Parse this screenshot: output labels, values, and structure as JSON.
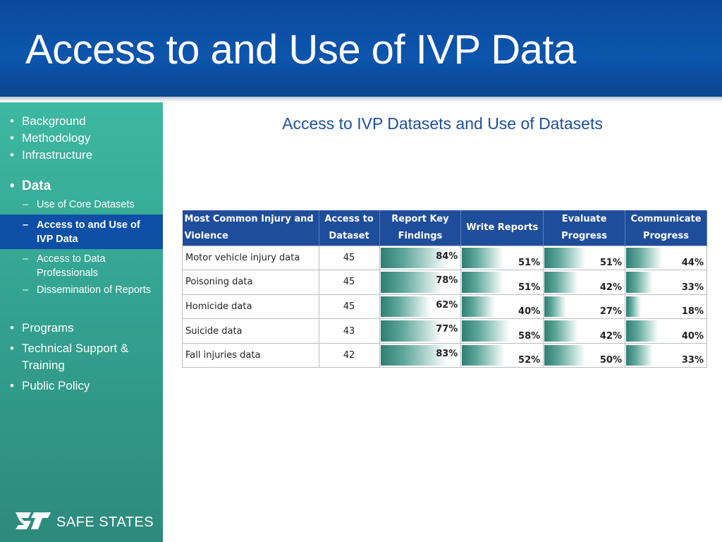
{
  "title": "Access to and Use of IVP Data",
  "sidebar": {
    "items": [
      {
        "label": "Background"
      },
      {
        "label": "Methodology"
      },
      {
        "label": "Infrastructure"
      },
      {
        "label": "Data"
      },
      {
        "label": "Use of Core Datasets"
      },
      {
        "label": "Access to and Use of  IVP Data"
      },
      {
        "label": "Access to Data Professionals"
      },
      {
        "label": "Dissemination of Reports"
      },
      {
        "label": "Programs"
      },
      {
        "label": "Technical Support & Training"
      },
      {
        "label": "Public Policy"
      }
    ],
    "logo_text": "SAFE STATES"
  },
  "subtitle": "Access to IVP Datasets and Use of Datasets",
  "table": {
    "headers": [
      "Most Common Injury and Violence",
      "Access to Dataset",
      "Report Key Findings",
      "Write Reports",
      "Evaluate Progress",
      "Communicate Progress"
    ],
    "rows": [
      {
        "name": "Motor vehicle injury data",
        "access": "45",
        "report": "84%",
        "write": "51%",
        "evaluate": "51%",
        "communicate": "44%"
      },
      {
        "name": "Poisoning data",
        "access": "45",
        "report": "78%",
        "write": "51%",
        "evaluate": "42%",
        "communicate": "33%"
      },
      {
        "name": "Homicide data",
        "access": "45",
        "report": "62%",
        "write": "40%",
        "evaluate": "27%",
        "communicate": "18%"
      },
      {
        "name": "Suicide data",
        "access": "43",
        "report": "77%",
        "write": "58%",
        "evaluate": "42%",
        "communicate": "40%"
      },
      {
        "name": "Fall injuries data",
        "access": "42",
        "report": "83%",
        "write": "52%",
        "evaluate": "50%",
        "communicate": "33%"
      }
    ]
  },
  "colors": {
    "title_bar": "#0d55ad",
    "sidebar": "#34a391",
    "active_item": "#0d4fa6",
    "table_header": "#1e4d9b",
    "bar": "#2f7e73",
    "subtitle": "#1d4fa0"
  }
}
